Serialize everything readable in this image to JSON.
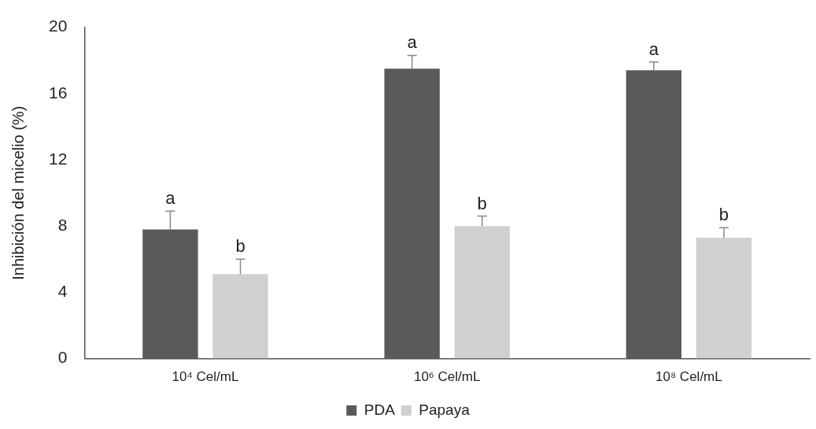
{
  "chart_data": {
    "type": "bar",
    "ylabel": "Inhibición del micelio (%)",
    "categories": [
      "10⁴ Cel/mL",
      "10⁶ Cel/mL",
      "10⁸ Cel/mL"
    ],
    "series": [
      {
        "name": "PDA",
        "color": "#5a5a5a",
        "values": [
          7.8,
          17.5,
          17.4
        ],
        "errors": [
          [
            7.8,
            8.9
          ],
          [
            17.5,
            18.3
          ],
          [
            17.4,
            17.9
          ]
        ],
        "value_labels": [
          "a",
          "a",
          "a"
        ]
      },
      {
        "name": "Papaya",
        "color": "#d0d0d0",
        "values": [
          5.1,
          8.0,
          7.3
        ],
        "errors": [
          [
            5.1,
            6.0
          ],
          [
            8.0,
            8.6
          ],
          [
            7.3,
            7.9
          ]
        ],
        "value_labels": [
          "b",
          "b",
          "b"
        ]
      }
    ],
    "ylim": [
      0,
      20
    ],
    "yticks": [
      0,
      4,
      8,
      12,
      16,
      20
    ],
    "grid": false,
    "legend": "bottom"
  }
}
